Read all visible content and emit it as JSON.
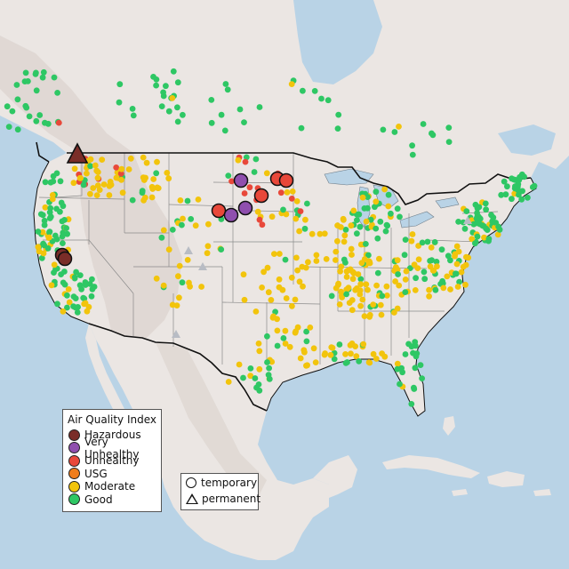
{
  "colors": {
    "ocean": "#b9d3e6",
    "land": "#ebe6e3",
    "mountain_tint": "#ddd4cf",
    "border": "#111111",
    "state_lines": "#8a8a8a",
    "Hazardous": "#7a2d28",
    "Very Unhealthy": "#8f4fae",
    "Unhealthy": "#e8483a",
    "USG": "#f07d1c",
    "Moderate": "#f2c40c",
    "Good": "#2ec764",
    "no_data": "#b8bcc4"
  },
  "legend": {
    "title": "Air Quality Index",
    "categories": [
      {
        "label": "Hazardous",
        "color": "#7a2d28"
      },
      {
        "label": "Very Unhealthy",
        "color": "#8f4fae"
      },
      {
        "label": "Unhealthy",
        "color": "#e8483a"
      },
      {
        "label": "USG",
        "color": "#f07d1c"
      },
      {
        "label": "Moderate",
        "color": "#f2c40c"
      },
      {
        "label": "Good",
        "color": "#2ec764"
      }
    ],
    "types": [
      {
        "label": "temporary",
        "shape": "circle-icon"
      },
      {
        "label": "permanent",
        "shape": "triangle-icon"
      }
    ]
  }
}
